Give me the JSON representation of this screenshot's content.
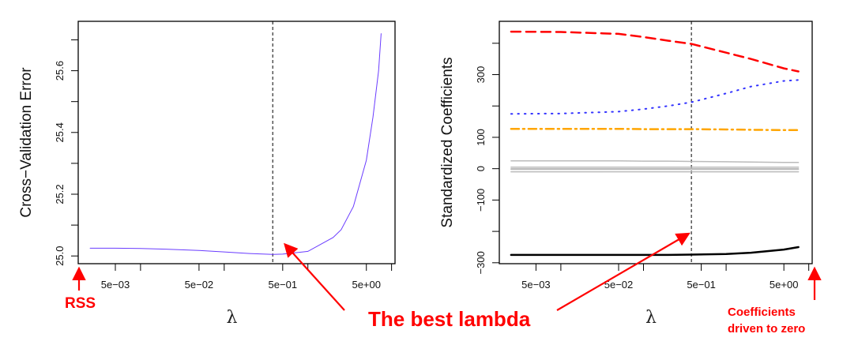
{
  "chart_data": [
    {
      "type": "line",
      "xlabel": "λ",
      "ylabel": "Cross−Validation Error",
      "x_scale": "log",
      "xlim": [
        0.0018,
        11
      ],
      "ylim": [
        24.975,
        25.76
      ],
      "x_ticks": [
        {
          "value": 0.005,
          "label": "5e−03"
        },
        {
          "value": 0.05,
          "label": "5e−02"
        },
        {
          "value": 0.5,
          "label": "5e−01"
        },
        {
          "value": 5,
          "label": "5e+00"
        }
      ],
      "x_minor_ticks": [
        0.01,
        0.1,
        1,
        10
      ],
      "y_ticks": [
        {
          "value": 25.0,
          "label": "25.0"
        },
        {
          "value": 25.2,
          "label": "25.2"
        },
        {
          "value": 25.4,
          "label": "25.4"
        },
        {
          "value": 25.6,
          "label": "25.6"
        }
      ],
      "y_minor_ticks": [
        25.1,
        25.3,
        25.5,
        25.7
      ],
      "vline": 0.38,
      "series": [
        {
          "color": "#6a3cff",
          "style": "solid",
          "x": [
            0.0025,
            0.005,
            0.01,
            0.02,
            0.05,
            0.1,
            0.2,
            0.38,
            0.5,
            1,
            2,
            2.5,
            3.5,
            5,
            6,
            7,
            7.5
          ],
          "y": [
            25.025,
            25.025,
            25.024,
            25.022,
            25.018,
            25.013,
            25.008,
            25.005,
            25.006,
            25.015,
            25.06,
            25.085,
            25.16,
            25.31,
            25.45,
            25.6,
            25.72
          ]
        }
      ]
    },
    {
      "type": "line",
      "xlabel": "λ",
      "ylabel": "Standardized Coefficients",
      "x_scale": "log",
      "xlim": [
        0.0018,
        11
      ],
      "ylim": [
        -303,
        470
      ],
      "x_ticks": [
        {
          "value": 0.005,
          "label": "5e−03"
        },
        {
          "value": 0.05,
          "label": "5e−02"
        },
        {
          "value": 0.5,
          "label": "5e−01"
        },
        {
          "value": 5,
          "label": "5e+00"
        }
      ],
      "x_minor_ticks": [
        0.01,
        0.1,
        1,
        10
      ],
      "y_ticks": [
        {
          "value": -300,
          "label": "−300"
        },
        {
          "value": -100,
          "label": "−100"
        },
        {
          "value": 0,
          "label": "0"
        },
        {
          "value": 100,
          "label": "100"
        },
        {
          "value": 300,
          "label": "300"
        }
      ],
      "y_minor_ticks": [
        -200,
        200,
        400
      ],
      "vline": 0.38,
      "x": [
        0.0025,
        0.01,
        0.05,
        0.1,
        0.2,
        0.38,
        1,
        2,
        5,
        7.5
      ],
      "series": [
        {
          "color": "#ff0000",
          "style": "dashed",
          "y": [
            437,
            436,
            430,
            420,
            408,
            398,
            370,
            350,
            320,
            310
          ]
        },
        {
          "color": "#3333ff",
          "style": "dotted",
          "y": [
            175,
            176,
            182,
            190,
            200,
            212,
            240,
            262,
            280,
            283
          ]
        },
        {
          "color": "#ffa500",
          "style": "dotdash",
          "y": [
            127,
            127,
            127,
            126,
            126,
            126,
            125,
            124,
            123,
            123
          ]
        },
        {
          "color": "#bbbbbb",
          "style": "solid",
          "y": [
            25,
            25,
            25,
            24,
            24,
            23,
            22,
            21,
            20,
            20
          ]
        },
        {
          "color": "#bbbbbb",
          "style": "solid",
          "y": [
            5,
            5,
            5,
            5,
            5,
            5,
            5,
            5,
            5,
            5
          ]
        },
        {
          "color": "#bbbbbb",
          "style": "solid",
          "y": [
            -2,
            -2,
            -2,
            -2,
            -2,
            -2,
            -2,
            -2,
            -2,
            -2
          ]
        },
        {
          "color": "#bbbbbb",
          "style": "solid",
          "y": [
            -10,
            -10,
            -10,
            -10,
            -10,
            -10,
            -10,
            -10,
            -10,
            -10
          ]
        },
        {
          "color": "#bbbbbb",
          "style": "solid",
          "y": [
            0,
            0,
            0,
            0,
            0,
            0,
            0,
            0,
            0,
            0
          ]
        },
        {
          "color": "#000000",
          "style": "solid",
          "y": [
            -275,
            -275,
            -275,
            -275,
            -275,
            -274,
            -272,
            -268,
            -258,
            -250
          ]
        }
      ]
    }
  ],
  "annotations": {
    "rss": "RSS",
    "best_lambda": "The best lambda",
    "zero_line1": "Coefficients",
    "zero_line2": "driven to zero",
    "color": "#ff0000"
  }
}
